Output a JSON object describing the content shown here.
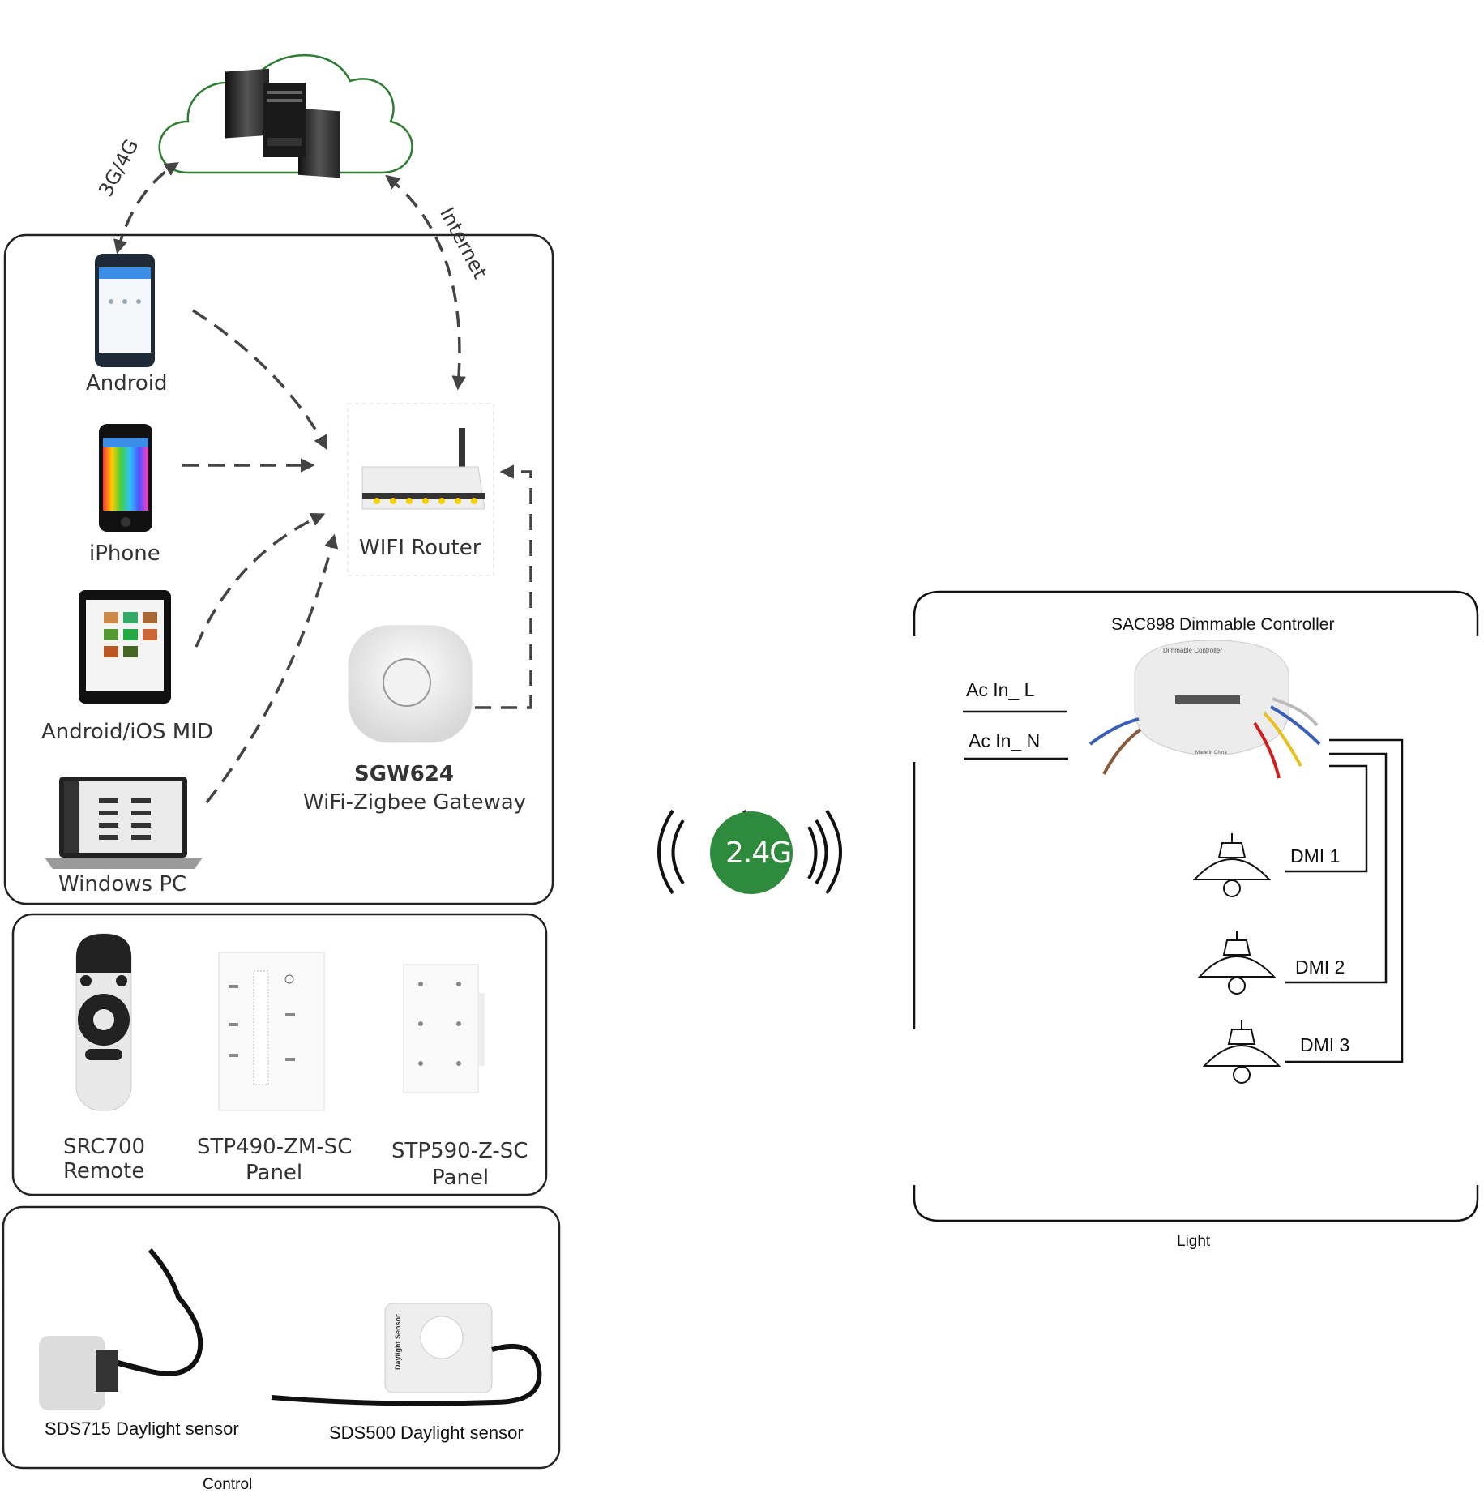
{
  "cloud": {
    "link_mobile": "3G/4G",
    "link_internet": "Internet"
  },
  "devices": {
    "android": "Android",
    "iphone": "iPhone",
    "mid": "Android/iOS MID",
    "pc": "Windows PC",
    "router": "WIFI Router",
    "gateway_model": "SGW624",
    "gateway_name": "WiFi-Zigbee Gateway"
  },
  "controls": {
    "remote_line1": "SRC700",
    "remote_line2": "Remote",
    "panel1_line1": "STP490-ZM-SC",
    "panel1_line2": "Panel",
    "panel2_line1": "STP590-Z-SC",
    "panel2_line2": "Panel"
  },
  "sensors": {
    "sensor1": "SDS715 Daylight sensor",
    "sensor2": "SDS500 Daylight sensor",
    "sensor2_body_text": "Daylight Sensor"
  },
  "captions": {
    "control": "Control",
    "light": "Light"
  },
  "wireless": {
    "badge": "2.4G",
    "color": "#2e8b3e"
  },
  "light_panel": {
    "title": "SAC898 Dimmable Controller",
    "ac_l": "Ac In_ L",
    "ac_n": "Ac In_ N",
    "channels": [
      "DMI 1",
      "DMI 2",
      "DMI 3"
    ],
    "controller_label": "Dimmable Controller",
    "controller_made": "Made in China"
  },
  "colors": {
    "cloud_outline": "#2e7d32",
    "arrow": "#444444",
    "wire_blue": "#3a5fb8",
    "wire_brown": "#8b5a3c",
    "wire_red": "#d02020",
    "wire_yellow": "#e8c020"
  }
}
